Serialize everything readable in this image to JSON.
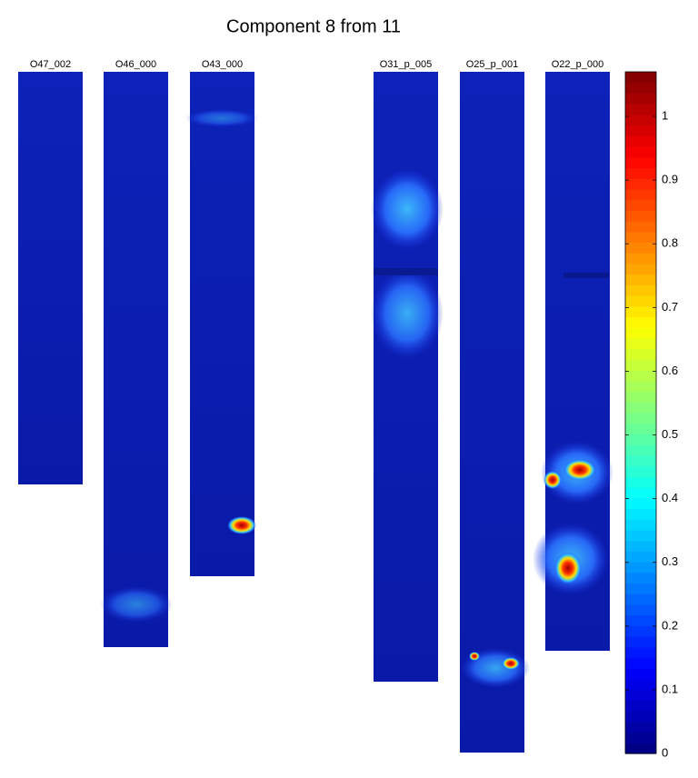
{
  "title": "Component 8 from 11",
  "panels": [
    {
      "label": "O47_002"
    },
    {
      "label": "O46_000"
    },
    {
      "label": "O43_000"
    },
    {
      "label": "O31_p_005"
    },
    {
      "label": "O25_p_001"
    },
    {
      "label": "O22_p_000"
    }
  ],
  "colorbar": {
    "colormap": "jet",
    "lim": [
      0,
      1.07
    ],
    "ticks": [
      0,
      0.1,
      0.2,
      0.3,
      0.4,
      0.5,
      0.6,
      0.7,
      0.8,
      0.9,
      1
    ]
  }
}
